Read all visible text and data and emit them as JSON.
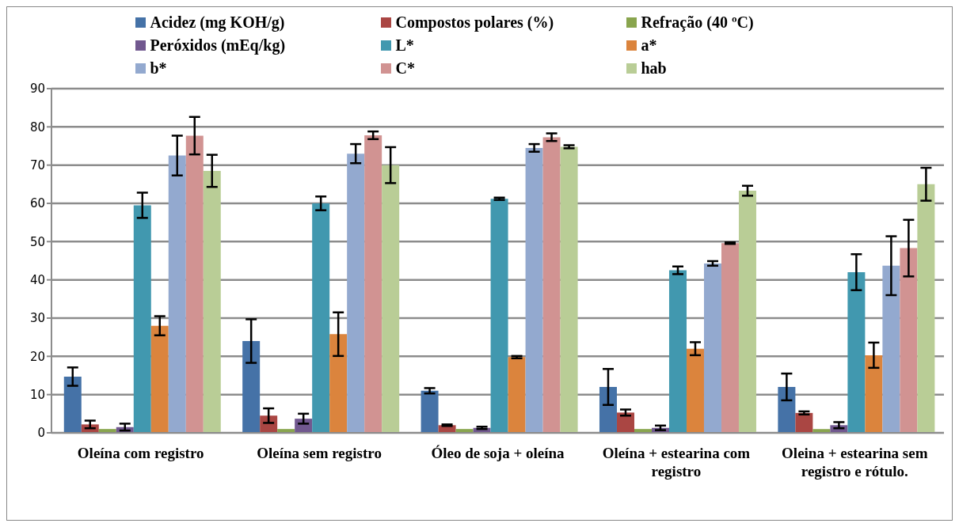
{
  "chart_data": {
    "type": "bar",
    "categories": [
      "Oleína com registro",
      "Oleína sem registro",
      "Óleo de soja + oleína",
      "Oleína + estearina com registro",
      "Oleina + estearina sem registro e rótulo."
    ],
    "series": [
      {
        "name": "Acidez (mg KOH/g)",
        "color": "#4572a7",
        "values": [
          14.7,
          24,
          11,
          12,
          12
        ],
        "errors": [
          2.4,
          5.7,
          0.7,
          4.7,
          3.5
        ]
      },
      {
        "name": "Compostos polares (%)",
        "color": "#aa4643",
        "values": [
          2.2,
          4.5,
          2,
          5.3,
          5.2
        ],
        "errors": [
          1,
          1.9,
          0.2,
          0.8,
          0.4
        ]
      },
      {
        "name": "Refração (40 ºC)",
        "color": "#89a54e",
        "values": [
          1,
          1,
          1,
          1,
          1
        ]
      },
      {
        "name": "Peróxidos (mEq/kg)",
        "color": "#71588f",
        "values": [
          1.5,
          3.7,
          1.3,
          1.3,
          2
        ],
        "errors": [
          0.9,
          1.3,
          0.3,
          0.6,
          0.8
        ]
      },
      {
        "name": "L*",
        "color": "#4198af",
        "values": [
          59.5,
          60,
          61.2,
          42.5,
          42
        ],
        "errors": [
          3.3,
          1.8,
          0.3,
          1,
          4.7
        ]
      },
      {
        "name": "a*",
        "color": "#db843d",
        "values": [
          28,
          25.8,
          19.8,
          22,
          20.3
        ],
        "errors": [
          2.5,
          5.7,
          0.3,
          1.7,
          3.3
        ]
      },
      {
        "name": "b*",
        "color": "#93a9cf",
        "values": [
          72.5,
          73,
          74.5,
          44.3,
          43.7
        ],
        "errors": [
          5.2,
          2.5,
          1,
          0.6,
          7.7
        ]
      },
      {
        "name": "C*",
        "color": "#d19392",
        "values": [
          77.7,
          77.8,
          77.3,
          49.6,
          48.3
        ],
        "errors": [
          4.9,
          1,
          1,
          0.2,
          7.4
        ]
      },
      {
        "name": "hab",
        "color": "#b9cd96",
        "values": [
          68.5,
          70,
          74.8,
          63.3,
          65
        ],
        "errors": [
          4.2,
          4.7,
          0.4,
          1.3,
          4.3
        ]
      }
    ],
    "ylim": [
      0,
      90
    ],
    "yticks": [
      0,
      10,
      20,
      30,
      40,
      50,
      60,
      70,
      80,
      90
    ],
    "grid": "y",
    "legend": "top"
  }
}
